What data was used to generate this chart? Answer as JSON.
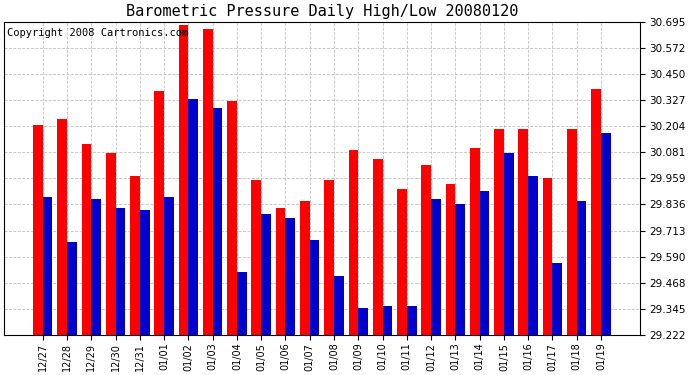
{
  "title": "Barometric Pressure Daily High/Low 20080120",
  "copyright": "Copyright 2008 Cartronics.com",
  "categories": [
    "12/27",
    "12/28",
    "12/29",
    "12/30",
    "12/31",
    "01/01",
    "01/02",
    "01/03",
    "01/04",
    "01/05",
    "01/06",
    "01/07",
    "01/08",
    "01/09",
    "01/10",
    "01/11",
    "01/12",
    "01/13",
    "01/14",
    "01/15",
    "01/16",
    "01/17",
    "01/18",
    "01/19"
  ],
  "highs": [
    30.21,
    30.24,
    30.12,
    30.08,
    29.97,
    30.37,
    30.68,
    30.66,
    30.32,
    29.95,
    29.82,
    29.85,
    29.95,
    30.09,
    30.05,
    29.91,
    30.02,
    29.93,
    30.1,
    30.19,
    30.19,
    29.96,
    30.19,
    30.38
  ],
  "lows": [
    29.87,
    29.66,
    29.86,
    29.82,
    29.81,
    29.87,
    30.33,
    30.29,
    29.52,
    29.79,
    29.77,
    29.67,
    29.5,
    29.35,
    29.36,
    29.36,
    29.86,
    29.84,
    29.9,
    30.08,
    29.97,
    29.56,
    29.85,
    30.17
  ],
  "ylim_min": 29.222,
  "ylim_max": 30.695,
  "yticks": [
    29.222,
    29.345,
    29.468,
    29.59,
    29.713,
    29.836,
    29.959,
    30.081,
    30.204,
    30.327,
    30.45,
    30.572,
    30.695
  ],
  "high_color": "#ff0000",
  "low_color": "#0000cc",
  "bg_color": "#ffffff",
  "grid_color": "#bbbbbb",
  "title_fontsize": 11,
  "copyright_fontsize": 7.5
}
